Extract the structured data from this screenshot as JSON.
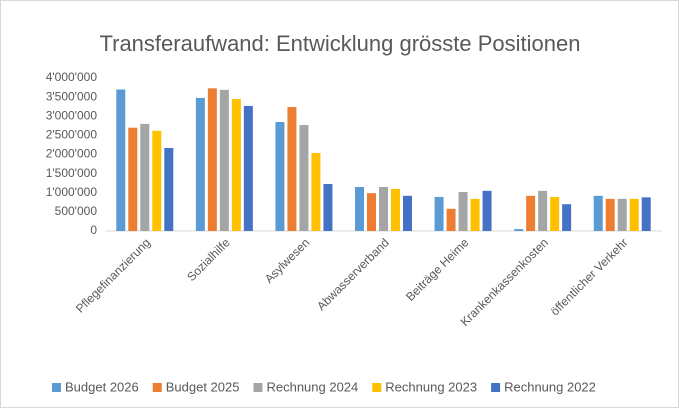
{
  "chart_data": {
    "type": "bar",
    "title": "Transferaufwand: Entwicklung grösste Positionen",
    "categories": [
      "Pflegefinanzierung",
      "Sozialhilfe",
      "Asylwesen",
      "Abwasserverband",
      "Beiträge Heime",
      "Krankenkassenkosten",
      "öffentlicher Verkehr"
    ],
    "series": [
      {
        "name": "Budget 2026",
        "color": "#5b9bd5",
        "values": [
          3700000,
          3480000,
          2850000,
          1150000,
          890000,
          50000,
          920000
        ]
      },
      {
        "name": "Budget 2025",
        "color": "#ed7d31",
        "values": [
          2700000,
          3730000,
          3240000,
          990000,
          580000,
          920000,
          840000
        ]
      },
      {
        "name": "Rechnung 2024",
        "color": "#a5a5a5",
        "values": [
          2800000,
          3690000,
          2770000,
          1150000,
          1020000,
          1050000,
          840000
        ]
      },
      {
        "name": "Rechnung 2023",
        "color": "#ffc000",
        "values": [
          2620000,
          3450000,
          2040000,
          1100000,
          840000,
          890000,
          840000
        ]
      },
      {
        "name": "Rechnung 2022",
        "color": "#4472c4",
        "values": [
          2170000,
          3270000,
          1230000,
          920000,
          1050000,
          700000,
          880000
        ]
      }
    ],
    "ylim": [
      0,
      4000000
    ],
    "yticks": [
      0,
      {
        "value": 500000,
        "label": "500'000"
      },
      {
        "value": 1000000,
        "label": "1'000'000"
      },
      {
        "value": 1500000,
        "label": "1'500'000"
      },
      {
        "value": 2000000,
        "label": "2'000'000"
      },
      {
        "value": 2500000,
        "label": "2'500'000"
      },
      {
        "value": 3000000,
        "label": "3'000'000"
      },
      {
        "value": 3500000,
        "label": "3'500'000"
      },
      {
        "value": 4000000,
        "label": "4'000'000"
      }
    ],
    "grid": false,
    "legend": "bottom"
  }
}
